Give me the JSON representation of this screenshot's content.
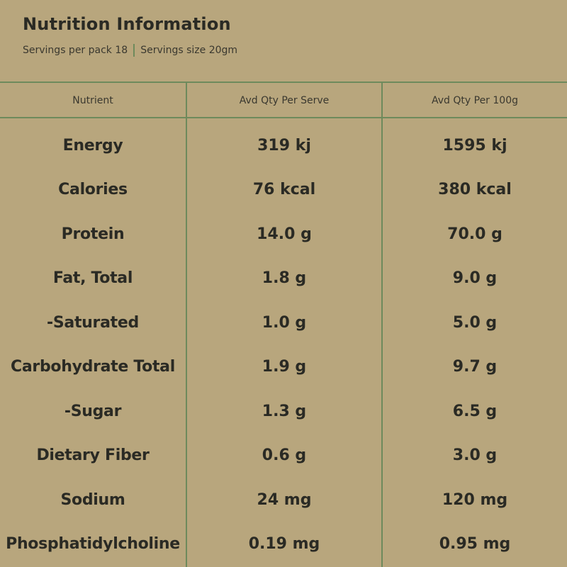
{
  "header": {
    "title": "Nutrition Information",
    "servings_per_pack": "Servings per pack 18",
    "serving_size": "Servings size 20gm"
  },
  "table": {
    "columns": [
      "Nutrient",
      "Avd Qty Per Serve",
      "Avd Qty Per 100g"
    ],
    "rows": [
      [
        "Energy",
        "319 kj",
        "1595 kj"
      ],
      [
        "Calories",
        "76 kcal",
        "380 kcal"
      ],
      [
        "Protein",
        "14.0 g",
        "70.0 g"
      ],
      [
        "Fat, Total",
        "1.8 g",
        "9.0 g"
      ],
      [
        "-Saturated",
        "1.0 g",
        "5.0 g"
      ],
      [
        "Carbohydrate Total",
        "1.9 g",
        "9.7 g"
      ],
      [
        "-Sugar",
        "1.3 g",
        "6.5 g"
      ],
      [
        "Dietary Fiber",
        "0.6 g",
        "3.0 g"
      ],
      [
        "Sodium",
        "24 mg",
        "120 mg"
      ],
      [
        "Phosphatidylcholine",
        "0.19 mg",
        "0.95 mg"
      ]
    ]
  },
  "colors": {
    "background": "#b8a67d",
    "rule": "#6e8a5c",
    "text": "#2a2a24"
  }
}
